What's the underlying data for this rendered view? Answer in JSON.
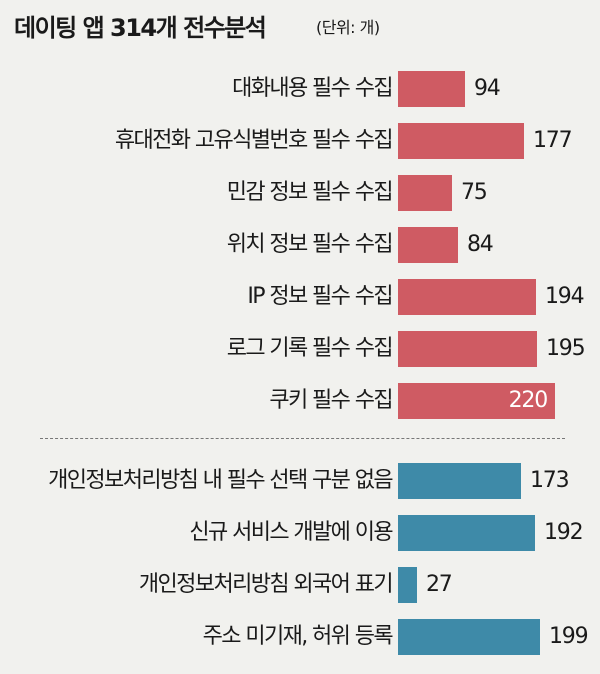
{
  "title": "데이팅 앱 314개 전수분석",
  "unit_note": "(단위: 개)",
  "colors": {
    "group1": "#cf5b63",
    "group2": "#3e8aa8"
  },
  "chart_data": {
    "type": "bar",
    "orientation": "horizontal",
    "title": "데이팅 앱 314개 전수분석",
    "unit": "(단위: 개)",
    "groups": [
      {
        "color": "#cf5b63",
        "categories": [
          "대화내용 필수 수집",
          "휴대전화 고유식별번호 필수 수집",
          "민감 정보 필수 수집",
          "위치 정보 필수 수집",
          "IP 정보 필수 수집",
          "로그 기록 필수 수집",
          "쿠키 필수 수집"
        ],
        "values": [
          94,
          177,
          75,
          84,
          194,
          195,
          220
        ]
      },
      {
        "color": "#3e8aa8",
        "categories": [
          "개인정보처리방침 내 필수 선택 구분 없음",
          "신규 서비스 개발에 이용",
          "개인정보처리방침 외국어 표기",
          "주소 미기재, 허위 등록"
        ],
        "values": [
          173,
          192,
          27,
          199
        ]
      }
    ]
  }
}
